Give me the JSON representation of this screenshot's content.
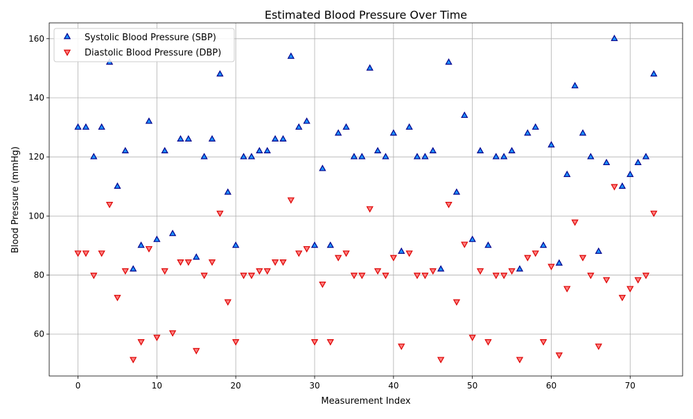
{
  "chart_data": {
    "type": "scatter",
    "title": "Estimated Blood Pressure Over Time",
    "xlabel": "Measurement Index",
    "ylabel": "Blood Pressure (mmHg)",
    "xlim": [
      -3.65,
      76.65
    ],
    "ylim": [
      45.85,
      165.35
    ],
    "x_ticks": [
      0,
      10,
      20,
      30,
      40,
      50,
      60,
      70
    ],
    "y_ticks": [
      60,
      80,
      100,
      120,
      140,
      160
    ],
    "grid": true,
    "legend_position": "top-left",
    "x": [
      0,
      1,
      2,
      3,
      4,
      5,
      6,
      7,
      8,
      9,
      10,
      11,
      12,
      13,
      14,
      15,
      16,
      17,
      18,
      19,
      20,
      21,
      22,
      23,
      24,
      25,
      26,
      27,
      28,
      29,
      30,
      31,
      32,
      33,
      34,
      35,
      36,
      37,
      38,
      39,
      40,
      41,
      42,
      43,
      44,
      45,
      46,
      47,
      48,
      49,
      50,
      51,
      52,
      53,
      54,
      55,
      56,
      57,
      58,
      59,
      60,
      61,
      62,
      63,
      64,
      65,
      66,
      67,
      68,
      69,
      70,
      71,
      72,
      73
    ],
    "series": [
      {
        "name": "Systolic Blood Pressure (SBP)",
        "marker": "triangle-up",
        "fill_color": "#1e90ff",
        "edge_color": "#00008b",
        "values": [
          130,
          130,
          120,
          130,
          152,
          110,
          122,
          82,
          90,
          132,
          92,
          122,
          94,
          126,
          126,
          86,
          120,
          126,
          148,
          108,
          90,
          120,
          120,
          122,
          122,
          126,
          126,
          154,
          130,
          132,
          90,
          116,
          90,
          128,
          130,
          120,
          120,
          150,
          122,
          120,
          128,
          88,
          130,
          120,
          120,
          122,
          82,
          152,
          108,
          134,
          92,
          122,
          90,
          120,
          120,
          122,
          82,
          128,
          130,
          90,
          124,
          84,
          114,
          144,
          128,
          120,
          88,
          118,
          160,
          110,
          114,
          118,
          120,
          148
        ]
      },
      {
        "name": "Diastolic Blood Pressure (DBP)",
        "marker": "triangle-down",
        "fill_color": "#ff7f7f",
        "edge_color": "#dd0000",
        "values": [
          87.5,
          87.5,
          80,
          87.5,
          104,
          72.5,
          81.5,
          51.5,
          57.5,
          89,
          59,
          81.5,
          60.5,
          84.5,
          84.5,
          54.5,
          80,
          84.5,
          101,
          71,
          57.5,
          80,
          80,
          81.5,
          81.5,
          84.5,
          84.5,
          105.5,
          87.5,
          89,
          57.5,
          77,
          57.5,
          86,
          87.5,
          80,
          80,
          102.5,
          81.5,
          80,
          86,
          56,
          87.5,
          80,
          80,
          81.5,
          51.5,
          104,
          71,
          90.5,
          59,
          81.5,
          57.5,
          80,
          80,
          81.5,
          51.5,
          86,
          87.5,
          57.5,
          83,
          53,
          75.5,
          98,
          86,
          80,
          56,
          78.5,
          110,
          72.5,
          75.5,
          78.5,
          80,
          101
        ]
      }
    ]
  }
}
